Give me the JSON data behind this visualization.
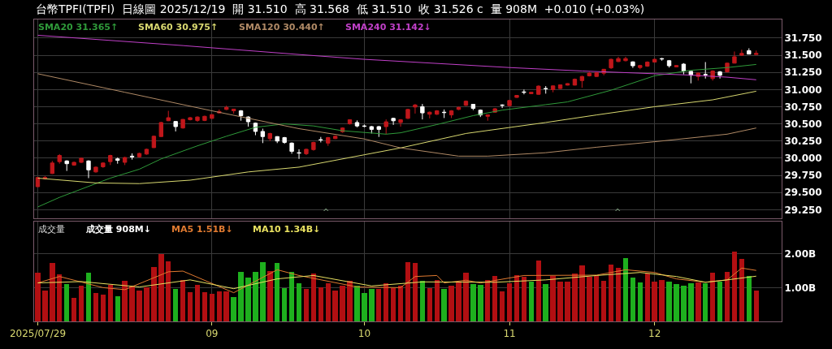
{
  "chart_data": [
    {
      "type": "candlestick",
      "title": "台幣TPFI(TPFI)  日線圖 2025/12/19  開 31.510  高 31.568  低 31.510  收 31.526 c  量 908M  +0.010 (+0.03%)",
      "categories": [
        "2025/07/29",
        null,
        null,
        null,
        null,
        null,
        null,
        null,
        null,
        null,
        null,
        null,
        null,
        null,
        null,
        null,
        null,
        null,
        null,
        null,
        null,
        null,
        null,
        null,
        "09",
        null,
        null,
        null,
        null,
        null,
        null,
        null,
        null,
        null,
        null,
        null,
        null,
        null,
        null,
        null,
        null,
        null,
        null,
        null,
        null,
        "10",
        null,
        null,
        null,
        null,
        null,
        null,
        null,
        null,
        null,
        null,
        null,
        null,
        null,
        null,
        null,
        null,
        null,
        null,
        null,
        "11",
        null,
        null,
        null,
        null,
        null,
        null,
        null,
        null,
        null,
        null,
        null,
        null,
        null,
        null,
        null,
        null,
        null,
        null,
        null,
        "12",
        null,
        null,
        null,
        null,
        null,
        null,
        null,
        null,
        null,
        null,
        null,
        null,
        null,
        null
      ],
      "ohlc": [
        [
          29.585,
          29.72,
          29.58,
          29.719
        ],
        [
          29.7,
          29.74,
          29.69,
          29.72
        ],
        [
          29.777,
          29.96,
          29.77,
          29.93
        ],
        [
          29.95,
          30.06,
          29.92,
          30.04
        ],
        [
          29.96,
          29.97,
          29.815,
          29.92
        ],
        [
          29.9,
          29.95,
          29.89,
          29.94
        ],
        [
          29.94,
          30.01,
          29.93,
          30.0
        ],
        [
          29.96,
          29.97,
          29.71,
          29.83
        ],
        [
          29.8,
          29.88,
          29.79,
          29.87
        ],
        [
          29.875,
          29.94,
          29.86,
          29.93
        ],
        [
          29.95,
          30.05,
          29.9,
          30.04
        ],
        [
          29.99,
          30.01,
          29.92,
          29.97
        ],
        [
          29.94,
          30.02,
          29.9,
          30.01
        ],
        [
          30.03,
          30.07,
          29.98,
          30.02
        ],
        [
          30.02,
          30.08,
          30.01,
          30.07
        ],
        [
          30.06,
          30.14,
          30.05,
          30.13
        ],
        [
          30.154,
          30.33,
          30.15,
          30.32
        ],
        [
          30.315,
          30.53,
          30.31,
          30.52
        ],
        [
          30.546,
          30.69,
          30.54,
          30.59
        ],
        [
          30.535,
          30.54,
          30.39,
          30.46
        ],
        [
          30.44,
          30.57,
          30.43,
          30.565
        ],
        [
          30.56,
          30.6,
          30.55,
          30.59
        ],
        [
          30.55,
          30.61,
          30.53,
          30.6
        ],
        [
          30.55,
          30.62,
          30.54,
          30.61
        ],
        [
          30.58,
          30.64,
          30.57,
          30.635
        ],
        [
          30.66,
          30.71,
          30.65,
          30.68
        ],
        [
          30.71,
          30.765,
          30.7,
          30.74
        ],
        [
          30.69,
          30.72,
          30.65,
          30.715
        ],
        [
          30.69,
          30.7,
          30.546,
          30.62
        ],
        [
          30.6,
          30.61,
          30.46,
          30.53
        ],
        [
          30.51,
          30.52,
          30.335,
          30.39
        ],
        [
          30.39,
          30.43,
          30.22,
          30.315
        ],
        [
          30.285,
          30.37,
          30.25,
          30.36
        ],
        [
          30.315,
          30.32,
          30.22,
          30.25
        ],
        [
          30.3,
          30.31,
          30.21,
          30.23
        ],
        [
          30.22,
          30.23,
          30.065,
          30.1
        ],
        [
          30.08,
          30.13,
          29.99,
          30.075
        ],
        [
          30.065,
          30.14,
          30.046,
          30.13
        ],
        [
          30.125,
          30.24,
          30.11,
          30.23
        ],
        [
          30.27,
          30.31,
          30.23,
          30.265
        ],
        [
          30.22,
          30.31,
          30.18,
          30.3
        ],
        [
          30.285,
          30.33,
          30.28,
          30.32
        ],
        [
          30.385,
          30.45,
          30.37,
          30.44
        ],
        [
          30.5,
          30.565,
          30.49,
          30.56
        ],
        [
          30.52,
          30.55,
          30.45,
          30.47
        ],
        [
          30.47,
          30.49,
          30.45,
          30.465
        ],
        [
          30.46,
          30.47,
          30.36,
          30.42
        ],
        [
          30.46,
          30.47,
          30.31,
          30.42
        ],
        [
          30.46,
          30.565,
          30.35,
          30.53
        ],
        [
          30.58,
          30.59,
          30.485,
          30.545
        ],
        [
          30.52,
          30.57,
          30.46,
          30.56
        ],
        [
          30.58,
          30.72,
          30.57,
          30.71
        ],
        [
          30.745,
          30.79,
          30.65,
          30.775
        ],
        [
          30.75,
          30.79,
          30.565,
          30.66
        ],
        [
          30.64,
          30.68,
          30.58,
          30.67
        ],
        [
          30.64,
          30.7,
          30.63,
          30.69
        ],
        [
          30.67,
          30.71,
          30.585,
          30.665
        ],
        [
          30.63,
          30.7,
          30.585,
          30.69
        ],
        [
          30.71,
          30.75,
          30.7,
          30.74
        ],
        [
          30.77,
          30.84,
          30.76,
          30.83
        ],
        [
          30.785,
          30.79,
          30.7,
          30.725
        ],
        [
          30.7,
          30.71,
          30.6,
          30.63
        ],
        [
          30.61,
          30.635,
          30.546,
          30.63
        ],
        [
          30.67,
          30.73,
          30.66,
          30.72
        ],
        [
          30.775,
          30.785,
          30.73,
          30.77
        ],
        [
          30.765,
          30.85,
          30.76,
          30.84
        ],
        [
          30.885,
          30.92,
          30.88,
          30.915
        ],
        [
          30.965,
          31.0,
          30.93,
          30.96
        ],
        [
          30.94,
          30.965,
          30.935,
          30.96
        ],
        [
          30.93,
          31.06,
          30.925,
          31.05
        ],
        [
          31.015,
          31.05,
          30.94,
          31.01
        ],
        [
          30.999,
          31.06,
          30.96,
          31.053
        ],
        [
          31.014,
          31.07,
          31.01,
          31.068
        ],
        [
          31.064,
          31.09,
          31.06,
          31.087
        ],
        [
          31.064,
          31.16,
          31.06,
          31.15
        ],
        [
          31.13,
          31.2,
          31.026,
          31.19
        ],
        [
          31.2,
          31.257,
          31.19,
          31.24
        ],
        [
          31.19,
          31.25,
          31.185,
          31.245
        ],
        [
          31.238,
          31.3,
          31.207,
          31.295
        ],
        [
          31.315,
          31.45,
          31.3,
          31.44
        ],
        [
          31.407,
          31.477,
          31.4,
          31.45
        ],
        [
          31.42,
          31.477,
          31.41,
          31.45
        ],
        [
          31.403,
          31.41,
          31.315,
          31.346
        ],
        [
          31.32,
          31.36,
          31.295,
          31.35
        ],
        [
          31.34,
          31.41,
          31.33,
          31.4
        ],
        [
          31.4,
          31.45,
          31.395,
          31.44
        ],
        [
          31.45,
          31.46,
          31.42,
          31.445
        ],
        [
          31.42,
          31.43,
          31.32,
          31.346
        ],
        [
          31.33,
          31.355,
          31.325,
          31.35
        ],
        [
          31.37,
          31.384,
          31.22,
          31.27
        ],
        [
          31.265,
          31.27,
          31.09,
          31.207
        ],
        [
          31.19,
          31.245,
          31.13,
          31.24
        ],
        [
          31.22,
          31.4,
          31.16,
          31.215
        ],
        [
          31.16,
          31.28,
          31.13,
          31.27
        ],
        [
          31.257,
          31.27,
          31.16,
          31.207
        ],
        [
          31.257,
          31.39,
          31.25,
          31.384
        ],
        [
          31.384,
          31.554,
          31.38,
          31.477
        ],
        [
          31.5,
          31.58,
          31.49,
          31.527
        ],
        [
          31.565,
          31.6,
          31.515,
          31.516
        ],
        [
          31.51,
          31.568,
          31.51,
          31.526
        ]
      ],
      "colors": [
        "#c0171b",
        "#c0171b",
        "#c0171b",
        "#c0171b",
        "#ffffff",
        "#c0171b",
        "#c0171b",
        "#ffffff",
        "#c0171b",
        "#c0171b",
        "#c0171b",
        "#ffffff",
        "#c0171b",
        "#ffffff",
        "#c0171b",
        "#c0171b",
        "#c0171b",
        "#c0171b",
        "#c0171b",
        "#ffffff",
        "#c0171b",
        "#c0171b",
        "#c0171b",
        "#c0171b",
        "#c0171b",
        "#c0171b",
        "#c0171b",
        "#c0171b",
        "#ffffff",
        "#ffffff",
        "#ffffff",
        "#ffffff",
        "#c0171b",
        "#ffffff",
        "#ffffff",
        "#ffffff",
        "#ffffff",
        "#c0171b",
        "#c0171b",
        "#ffffff",
        "#c0171b",
        "#c0171b",
        "#c0171b",
        "#c0171b",
        "#ffffff",
        "#ffffff",
        "#ffffff",
        "#ffffff",
        "#c0171b",
        "#ffffff",
        "#c0171b",
        "#c0171b",
        "#c0171b",
        "#ffffff",
        "#c0171b",
        "#c0171b",
        "#ffffff",
        "#c0171b",
        "#c0171b",
        "#c0171b",
        "#ffffff",
        "#ffffff",
        "#c0171b",
        "#c0171b",
        "#ffffff",
        "#c0171b",
        "#c0171b",
        "#ffffff",
        "#c0171b",
        "#c0171b",
        "#ffffff",
        "#c0171b",
        "#c0171b",
        "#c0171b",
        "#c0171b",
        "#c0171b",
        "#c0171b",
        "#c0171b",
        "#c0171b",
        "#c0171b",
        "#c0171b",
        "#c0171b",
        "#ffffff",
        "#c0171b",
        "#c0171b",
        "#c0171b",
        "#ffffff",
        "#ffffff",
        "#c0171b",
        "#ffffff",
        "#ffffff",
        "#c0171b",
        "#ffffff",
        "#c0171b",
        "#ffffff",
        "#c0171b",
        "#c0171b",
        "#c0171b",
        "#ffffff",
        "#c0171b"
      ],
      "series": [
        {
          "name": "SMA20 31.365↑",
          "type": "line",
          "color": "#2f9a3a",
          "values": [
            29.29,
            null,
            null,
            29.43,
            null,
            null,
            null,
            null,
            null,
            null,
            29.71,
            null,
            null,
            null,
            29.84,
            null,
            null,
            29.99,
            null,
            null,
            null,
            null,
            30.18,
            null,
            null,
            null,
            30.32,
            null,
            null,
            null,
            30.45,
            null,
            null,
            null,
            30.5,
            null,
            null,
            null,
            30.47,
            null,
            null,
            null,
            30.4,
            null,
            null,
            null,
            null,
            null,
            30.35,
            null,
            30.37,
            null,
            null,
            null,
            null,
            30.49,
            null,
            null,
            null,
            null,
            30.62,
            null,
            null,
            null,
            30.7,
            null,
            null,
            null,
            null,
            null,
            30.78,
            null,
            null,
            30.82,
            null,
            null,
            null,
            null,
            null,
            30.99,
            null,
            null,
            null,
            null,
            null,
            31.2,
            null,
            null,
            null,
            null,
            31.28,
            null,
            null,
            null,
            null,
            31.32,
            null,
            null,
            null,
            31.365
          ]
        },
        {
          "name": "SMA60 30.975↑",
          "type": "line",
          "color": "#d8d870",
          "values": [
            29.71,
            null,
            null,
            null,
            null,
            null,
            null,
            null,
            29.64,
            null,
            null,
            null,
            null,
            null,
            29.63,
            null,
            null,
            null,
            null,
            null,
            null,
            29.68,
            null,
            null,
            null,
            null,
            null,
            null,
            null,
            29.8,
            null,
            null,
            null,
            null,
            null,
            null,
            29.87,
            null,
            null,
            null,
            null,
            null,
            null,
            null,
            null,
            30.05,
            null,
            null,
            null,
            null,
            30.15,
            null,
            null,
            null,
            null,
            null,
            null,
            null,
            null,
            30.36,
            null,
            null,
            null,
            null,
            null,
            null,
            null,
            null,
            null,
            null,
            30.52,
            null,
            null,
            null,
            null,
            null,
            null,
            30.63,
            null,
            null,
            null,
            null,
            null,
            null,
            null,
            30.75,
            null,
            null,
            null,
            null,
            null,
            null,
            null,
            30.85,
            null,
            null,
            null,
            null,
            null,
            30.975
          ]
        },
        {
          "name": "SMA120 30.440↑",
          "type": "line",
          "color": "#b08a66",
          "values": [
            31.23,
            null,
            null,
            null,
            null,
            null,
            null,
            null,
            null,
            null,
            null,
            null,
            30.96,
            null,
            null,
            null,
            null,
            null,
            null,
            null,
            null,
            null,
            null,
            null,
            30.69,
            null,
            null,
            null,
            null,
            null,
            null,
            null,
            null,
            null,
            null,
            null,
            30.43,
            null,
            null,
            null,
            null,
            null,
            null,
            null,
            null,
            30.28,
            null,
            null,
            null,
            null,
            30.15,
            null,
            null,
            null,
            null,
            null,
            null,
            null,
            30.03,
            null,
            null,
            null,
            30.03,
            null,
            null,
            null,
            null,
            null,
            null,
            null,
            30.08,
            null,
            null,
            null,
            null,
            null,
            null,
            30.16,
            null,
            null,
            null,
            null,
            null,
            null,
            null,
            30.24,
            null,
            null,
            null,
            null,
            null,
            null,
            null,
            null,
            null,
            30.35,
            null,
            null,
            null,
            30.44
          ]
        },
        {
          "name": "SMA240 31.142↓",
          "type": "line",
          "color": "#c040c8",
          "values": [
            31.79,
            null,
            null,
            null,
            null,
            null,
            null,
            null,
            null,
            null,
            null,
            null,
            null,
            null,
            null,
            null,
            null,
            null,
            null,
            null,
            31.64,
            null,
            null,
            null,
            null,
            null,
            null,
            null,
            null,
            null,
            null,
            null,
            null,
            null,
            null,
            null,
            31.51,
            null,
            null,
            null,
            null,
            null,
            null,
            null,
            null,
            31.44,
            null,
            null,
            null,
            null,
            null,
            null,
            null,
            null,
            null,
            null,
            null,
            null,
            null,
            null,
            null,
            null,
            null,
            null,
            null,
            31.32,
            null,
            null,
            null,
            null,
            null,
            null,
            null,
            null,
            null,
            31.27,
            null,
            null,
            null,
            null,
            null,
            null,
            null,
            null,
            null,
            31.23,
            null,
            null,
            null,
            null,
            31.21,
            null,
            null,
            null,
            null,
            31.18,
            null,
            null,
            null,
            31.142
          ]
        }
      ],
      "ylim": [
        29.12,
        32.02
      ],
      "yticks": [
        {
          "value": 29.25,
          "label": "29.250"
        },
        {
          "value": 29.5,
          "label": "29.500"
        },
        {
          "value": 29.75,
          "label": "29.750"
        },
        {
          "value": 30.0,
          "label": "30.000"
        },
        {
          "value": 30.25,
          "label": "30.250"
        },
        {
          "value": 30.5,
          "label": "30.500"
        },
        {
          "value": 30.75,
          "label": "30.750"
        },
        {
          "value": 31.0,
          "label": "31.000"
        },
        {
          "value": 31.25,
          "label": "31.250"
        },
        {
          "value": 31.5,
          "label": "31.500"
        },
        {
          "value": 31.75,
          "label": "31.750"
        }
      ],
      "annotations": [
        "^",
        "^"
      ],
      "tick_labels": "y",
      "grid": true,
      "legend": "top left"
    },
    {
      "type": "bar",
      "title": "成交量",
      "categories": [
        "2025/07/29",
        null,
        null,
        null,
        null,
        null,
        null,
        null,
        null,
        null,
        null,
        null,
        null,
        null,
        null,
        null,
        null,
        null,
        null,
        null,
        null,
        null,
        null,
        null,
        "09",
        null,
        null,
        null,
        null,
        null,
        null,
        null,
        null,
        null,
        null,
        null,
        null,
        null,
        null,
        null,
        null,
        null,
        null,
        null,
        null,
        "10",
        null,
        null,
        null,
        null,
        null,
        null,
        null,
        null,
        null,
        null,
        null,
        null,
        null,
        null,
        null,
        null,
        null,
        null,
        null,
        "11",
        null,
        null,
        null,
        null,
        null,
        null,
        null,
        null,
        null,
        null,
        null,
        null,
        null,
        null,
        null,
        null,
        null,
        null,
        null,
        "12",
        null,
        null,
        null,
        null,
        null,
        null,
        null,
        null,
        null,
        null,
        null,
        null,
        null,
        null
      ],
      "series": [
        {
          "name": "成交量 908M↓",
          "type": "bar",
          "values": [
            1.43,
            0.91,
            1.72,
            1.39,
            1.09,
            0.69,
            1.05,
            1.43,
            0.83,
            0.78,
            1.08,
            0.74,
            1.2,
            1.06,
            0.91,
            1.0,
            1.6,
            2.0,
            1.76,
            0.95,
            1.22,
            0.85,
            1.08,
            0.85,
            0.8,
            0.89,
            0.89,
            0.71,
            1.45,
            1.28,
            1.45,
            1.74,
            1.48,
            1.72,
            0.97,
            1.45,
            1.12,
            0.95,
            1.41,
            1.0,
            1.12,
            0.91,
            1.06,
            1.2,
            1.06,
            0.83,
            0.95,
            0.95,
            1.12,
            0.97,
            1.06,
            1.74,
            1.72,
            1.19,
            0.98,
            1.23,
            0.96,
            1.05,
            1.16,
            1.44,
            1.1,
            1.08,
            1.23,
            1.33,
            0.89,
            1.12,
            1.36,
            1.32,
            1.17,
            1.79,
            1.09,
            1.33,
            1.16,
            1.18,
            1.4,
            1.66,
            1.31,
            1.33,
            1.2,
            1.68,
            1.58,
            1.88,
            1.28,
            1.14,
            1.4,
            1.16,
            1.23,
            1.16,
            1.1,
            1.05,
            1.12,
            1.14,
            1.12,
            1.43,
            1.17,
            1.45,
            2.05,
            1.84,
            1.35,
            0.91
          ],
          "colors": [
            "#b20f12",
            "#b20f12",
            "#b20f12",
            "#b20f12",
            "#1eb01e",
            "#b20f12",
            "#b20f12",
            "#1eb01e",
            "#b20f12",
            "#b20f12",
            "#b20f12",
            "#1eb01e",
            "#b20f12",
            "#b20f12",
            "#b20f12",
            "#b20f12",
            "#b20f12",
            "#b20f12",
            "#b20f12",
            "#1eb01e",
            "#b20f12",
            "#b20f12",
            "#b20f12",
            "#b20f12",
            "#b20f12",
            "#b20f12",
            "#b20f12",
            "#1eb01e",
            "#1eb01e",
            "#1eb01e",
            "#1eb01e",
            "#1eb01e",
            "#b20f12",
            "#1eb01e",
            "#1eb01e",
            "#1eb01e",
            "#1eb01e",
            "#b20f12",
            "#b20f12",
            "#b20f12",
            "#b20f12",
            "#b20f12",
            "#b20f12",
            "#b20f12",
            "#1eb01e",
            "#1eb01e",
            "#1eb01e",
            "#b20f12",
            "#b20f12",
            "#b20f12",
            "#b20f12",
            "#b20f12",
            "#b20f12",
            "#1eb01e",
            "#b20f12",
            "#b20f12",
            "#1eb01e",
            "#b20f12",
            "#b20f12",
            "#b20f12",
            "#1eb01e",
            "#1eb01e",
            "#b20f12",
            "#b20f12",
            "#b20f12",
            "#b20f12",
            "#b20f12",
            "#b20f12",
            "#1eb01e",
            "#b20f12",
            "#1eb01e",
            "#b20f12",
            "#b20f12",
            "#b20f12",
            "#b20f12",
            "#b20f12",
            "#b20f12",
            "#b20f12",
            "#b20f12",
            "#b20f12",
            "#b20f12",
            "#1eb01e",
            "#1eb01e",
            "#1eb01e",
            "#b20f12",
            "#b20f12",
            "#b20f12",
            "#1eb01e",
            "#1eb01e",
            "#1eb01e",
            "#1eb01e",
            "#b20f12",
            "#1eb01e",
            "#b20f12",
            "#1eb01e",
            "#b20f12",
            "#b20f12",
            "#b20f12",
            "#1eb01e",
            "#b20f12"
          ]
        },
        {
          "name": "MA5 1.51B↓",
          "type": "line",
          "color": "#e07a30",
          "values": [
            1.14,
            null,
            null,
            1.33,
            null,
            null,
            null,
            null,
            null,
            1.0,
            null,
            null,
            0.94,
            null,
            null,
            null,
            null,
            null,
            1.47,
            null,
            1.49,
            null,
            null,
            null,
            null,
            null,
            null,
            0.85,
            null,
            null,
            null,
            null,
            null,
            1.53,
            null,
            null,
            1.36,
            null,
            null,
            null,
            null,
            null,
            null,
            null,
            1.02,
            null,
            null,
            null,
            null,
            null,
            1.0,
            null,
            1.33,
            null,
            null,
            1.36,
            1.14,
            null,
            null,
            1.22,
            null,
            1.14,
            null,
            null,
            null,
            null,
            null,
            1.36,
            null,
            null,
            null,
            null,
            null,
            null,
            null,
            null,
            null,
            1.37,
            null,
            null,
            null,
            1.53,
            null,
            null,
            null,
            1.45,
            null,
            null,
            1.26,
            null,
            null,
            null,
            1.16,
            null,
            null,
            1.23,
            null,
            1.58,
            null,
            1.51
          ]
        },
        {
          "name": "MA10 1.34B↓",
          "type": "line",
          "color": "#e8e060",
          "values": [
            1.14,
            null,
            null,
            null,
            null,
            null,
            1.18,
            null,
            null,
            null,
            null,
            null,
            null,
            null,
            1.02,
            null,
            null,
            null,
            null,
            null,
            null,
            1.23,
            null,
            null,
            null,
            null,
            null,
            0.97,
            null,
            null,
            null,
            null,
            null,
            1.26,
            null,
            null,
            null,
            null,
            1.36,
            null,
            null,
            null,
            null,
            null,
            null,
            null,
            1.05,
            null,
            null,
            null,
            null,
            null,
            null,
            1.17,
            null,
            null,
            null,
            null,
            null,
            null,
            null,
            null,
            null,
            1.16,
            null,
            null,
            null,
            null,
            null,
            null,
            1.23,
            null,
            null,
            null,
            null,
            null,
            null,
            1.36,
            null,
            null,
            null,
            null,
            null,
            1.45,
            null,
            null,
            null,
            null,
            1.33,
            null,
            null,
            null,
            1.16,
            null,
            null,
            1.23,
            null,
            null,
            null,
            1.34
          ]
        }
      ],
      "ylim": [
        0,
        2.95
      ],
      "yticks": [
        {
          "value": 1,
          "label": "1.00B"
        },
        {
          "value": 2,
          "label": "2.00B"
        }
      ],
      "grid": true,
      "legend": "top left"
    }
  ]
}
